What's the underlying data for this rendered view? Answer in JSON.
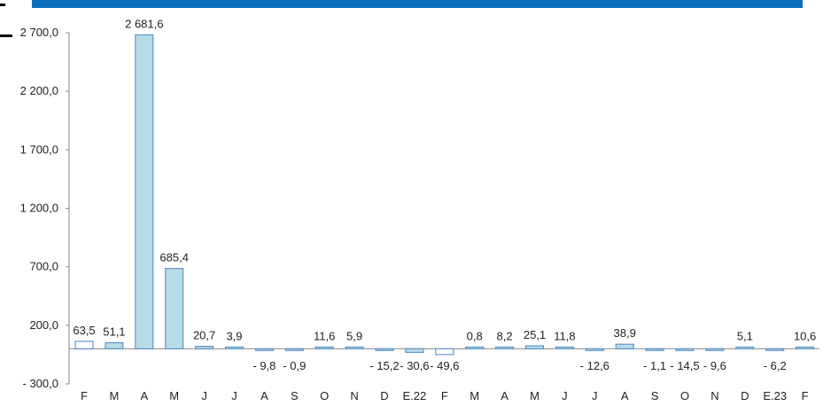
{
  "colors": {
    "header_bar": "#0b6fbf",
    "bar_fill": "#b8dbe8",
    "bar_fill_light": "#ffffff",
    "bar_stroke": "#4a86c5",
    "axis": "#888888"
  },
  "chart_data": {
    "type": "bar",
    "title": "",
    "xlabel": "",
    "ylabel": "",
    "ylim": [
      -300,
      2700
    ],
    "yticks": [
      -300,
      200,
      700,
      1200,
      1700,
      2200,
      2700
    ],
    "ytick_labels": [
      "- 300,0",
      "200,0",
      "700,0",
      "1 200,0",
      "1 700,0",
      "2 200,0",
      "2 700,0"
    ],
    "categories": [
      "F",
      "M",
      "A",
      "M",
      "J",
      "J",
      "A",
      "S",
      "O",
      "N",
      "D",
      "E.22",
      "F",
      "M",
      "A",
      "M",
      "J",
      "J",
      "A",
      "S",
      "O",
      "N",
      "D",
      "E.23",
      "F"
    ],
    "values": [
      63.5,
      51.1,
      2681.6,
      685.4,
      20.7,
      3.9,
      -9.8,
      -0.9,
      11.6,
      5.9,
      -15.2,
      -30.6,
      -49.6,
      0.8,
      8.2,
      25.1,
      11.8,
      -12.6,
      38.9,
      -1.1,
      -14.5,
      -9.6,
      5.1,
      -6.2,
      10.6
    ],
    "value_labels": [
      "63,5",
      "51,1",
      "2 681,6",
      "685,4",
      "20,7",
      "3,9",
      "- 9,8",
      "- 0,9",
      "11,6",
      "5,9",
      "- 15,2",
      "- 30,6",
      "- 49,6",
      "0,8",
      "8,2",
      "25,1",
      "11,8",
      "- 12,6",
      "38,9",
      "- 1,1",
      "- 14,5",
      "- 9,6",
      "5,1",
      "- 6,2",
      "10,6"
    ],
    "bar_style": [
      "light",
      "filled",
      "filled",
      "filled",
      "filled",
      "filled",
      "filled",
      "filled",
      "filled",
      "filled",
      "filled",
      "filled",
      "light",
      "filled",
      "filled",
      "filled",
      "filled",
      "filled",
      "filled",
      "filled",
      "filled",
      "filled",
      "filled",
      "filled",
      "filled"
    ],
    "grid": false,
    "legend": "none"
  }
}
